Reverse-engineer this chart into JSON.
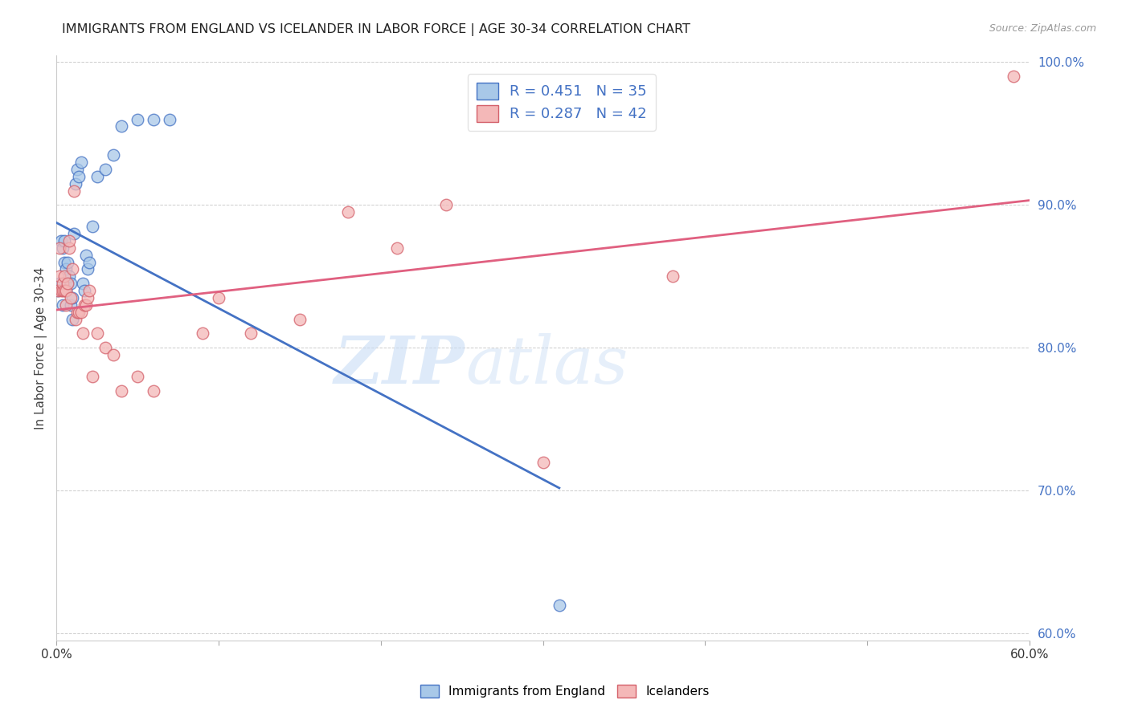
{
  "title": "IMMIGRANTS FROM ENGLAND VS ICELANDER IN LABOR FORCE | AGE 30-34 CORRELATION CHART",
  "source": "Source: ZipAtlas.com",
  "ylabel": "In Labor Force | Age 30-34",
  "xlim": [
    0.0,
    0.6
  ],
  "ylim": [
    0.595,
    1.005
  ],
  "x_ticks": [
    0.0,
    0.1,
    0.2,
    0.3,
    0.4,
    0.5,
    0.6
  ],
  "y_ticks_right": [
    0.6,
    0.7,
    0.8,
    0.9,
    1.0
  ],
  "y_tick_labels_right": [
    "60.0%",
    "70.0%",
    "80.0%",
    "90.0%",
    "100.0%"
  ],
  "r_england": 0.451,
  "n_england": 35,
  "r_icelander": 0.287,
  "n_icelander": 42,
  "england_color": "#a8c8e8",
  "icelander_color": "#f4b8b8",
  "england_edge_color": "#4472c4",
  "icelander_edge_color": "#d4606a",
  "england_line_color": "#4472c4",
  "icelander_line_color": "#e06080",
  "england_x": [
    0.001,
    0.002,
    0.003,
    0.004,
    0.004,
    0.005,
    0.005,
    0.006,
    0.006,
    0.007,
    0.007,
    0.008,
    0.009,
    0.009,
    0.01,
    0.01,
    0.011,
    0.012,
    0.013,
    0.014,
    0.015,
    0.016,
    0.017,
    0.018,
    0.019,
    0.02,
    0.022,
    0.025,
    0.03,
    0.035,
    0.04,
    0.05,
    0.06,
    0.07,
    0.31
  ],
  "england_y": [
    0.84,
    0.845,
    0.875,
    0.83,
    0.87,
    0.86,
    0.875,
    0.84,
    0.855,
    0.845,
    0.86,
    0.85,
    0.83,
    0.845,
    0.82,
    0.835,
    0.88,
    0.915,
    0.925,
    0.92,
    0.93,
    0.845,
    0.84,
    0.865,
    0.855,
    0.86,
    0.885,
    0.92,
    0.925,
    0.935,
    0.955,
    0.96,
    0.96,
    0.96,
    0.62
  ],
  "icelander_x": [
    0.001,
    0.002,
    0.002,
    0.003,
    0.004,
    0.004,
    0.005,
    0.005,
    0.006,
    0.006,
    0.007,
    0.008,
    0.008,
    0.009,
    0.01,
    0.011,
    0.012,
    0.013,
    0.014,
    0.015,
    0.016,
    0.017,
    0.018,
    0.019,
    0.02,
    0.022,
    0.025,
    0.03,
    0.035,
    0.04,
    0.05,
    0.06,
    0.09,
    0.1,
    0.12,
    0.15,
    0.18,
    0.21,
    0.24,
    0.3,
    0.38,
    0.59
  ],
  "icelander_y": [
    0.84,
    0.85,
    0.87,
    0.84,
    0.84,
    0.845,
    0.84,
    0.85,
    0.83,
    0.84,
    0.845,
    0.87,
    0.875,
    0.835,
    0.855,
    0.91,
    0.82,
    0.825,
    0.825,
    0.825,
    0.81,
    0.83,
    0.83,
    0.835,
    0.84,
    0.78,
    0.81,
    0.8,
    0.795,
    0.77,
    0.78,
    0.77,
    0.81,
    0.835,
    0.81,
    0.82,
    0.895,
    0.87,
    0.9,
    0.72,
    0.85,
    0.99
  ],
  "watermark_zip": "ZIP",
  "watermark_atlas": "atlas",
  "legend_england": "Immigrants from England",
  "legend_icelander": "Icelanders"
}
